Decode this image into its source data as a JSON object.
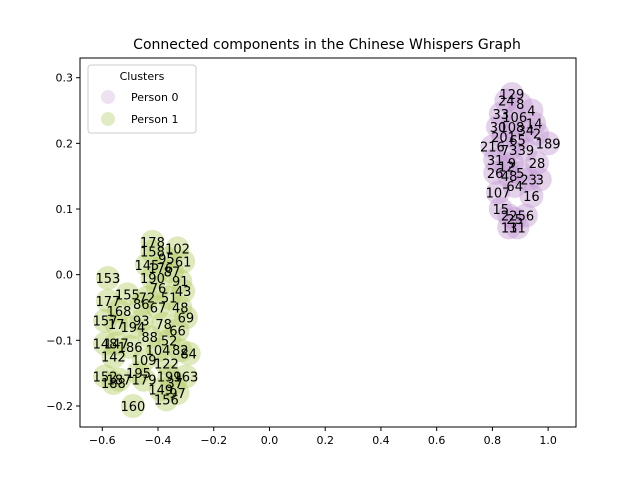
{
  "chart_data": {
    "type": "scatter",
    "title": "Connected components in the Chinese Whispers Graph",
    "xlim": [
      -0.68,
      1.1
    ],
    "ylim": [
      -0.232,
      0.33
    ],
    "x_ticks": [
      -0.6,
      -0.4,
      -0.2,
      0.0,
      0.2,
      0.4,
      0.6,
      0.8,
      1.0
    ],
    "x_tick_labels": [
      "−0.6",
      "−0.4",
      "−0.2",
      "0.0",
      "0.2",
      "0.4",
      "0.6",
      "0.8",
      "1.0"
    ],
    "y_ticks": [
      -0.2,
      -0.1,
      0.0,
      0.1,
      0.2,
      0.3
    ],
    "y_tick_labels": [
      "−0.2",
      "−0.1",
      "0.0",
      "0.1",
      "0.2",
      "0.3"
    ],
    "grid": false,
    "legend": {
      "title": "Clusters",
      "placement": "top-left"
    },
    "series": [
      {
        "name": "Person 0",
        "color": "#c39bd3",
        "points": [
          {
            "x": 0.87,
            "y": 0.275,
            "label": "129"
          },
          {
            "x": 0.85,
            "y": 0.265,
            "label": "24"
          },
          {
            "x": 0.9,
            "y": 0.26,
            "label": "8"
          },
          {
            "x": 0.94,
            "y": 0.25,
            "label": "4"
          },
          {
            "x": 0.83,
            "y": 0.245,
            "label": "33"
          },
          {
            "x": 0.88,
            "y": 0.24,
            "label": "106"
          },
          {
            "x": 0.95,
            "y": 0.23,
            "label": "14"
          },
          {
            "x": 0.82,
            "y": 0.225,
            "label": "30"
          },
          {
            "x": 0.87,
            "y": 0.225,
            "label": "108"
          },
          {
            "x": 0.92,
            "y": 0.22,
            "label": "34"
          },
          {
            "x": 0.96,
            "y": 0.215,
            "label": "2"
          },
          {
            "x": 0.84,
            "y": 0.21,
            "label": "201"
          },
          {
            "x": 0.89,
            "y": 0.205,
            "label": "65"
          },
          {
            "x": 1.0,
            "y": 0.2,
            "label": "189"
          },
          {
            "x": 0.8,
            "y": 0.195,
            "label": "216"
          },
          {
            "x": 0.86,
            "y": 0.19,
            "label": "73"
          },
          {
            "x": 0.92,
            "y": 0.19,
            "label": "39"
          },
          {
            "x": 0.81,
            "y": 0.175,
            "label": "31"
          },
          {
            "x": 0.87,
            "y": 0.17,
            "label": "9"
          },
          {
            "x": 0.96,
            "y": 0.17,
            "label": "28"
          },
          {
            "x": 0.85,
            "y": 0.165,
            "label": "12"
          },
          {
            "x": 0.81,
            "y": 0.155,
            "label": "26"
          },
          {
            "x": 0.9,
            "y": 0.155,
            "label": "5"
          },
          {
            "x": 0.86,
            "y": 0.15,
            "label": "48"
          },
          {
            "x": 0.93,
            "y": 0.145,
            "label": "23"
          },
          {
            "x": 0.97,
            "y": 0.145,
            "label": "3"
          },
          {
            "x": 0.88,
            "y": 0.135,
            "label": "64"
          },
          {
            "x": 0.82,
            "y": 0.125,
            "label": "107"
          },
          {
            "x": 0.94,
            "y": 0.12,
            "label": "16"
          },
          {
            "x": 0.83,
            "y": 0.1,
            "label": "15"
          },
          {
            "x": 0.86,
            "y": 0.09,
            "label": "22"
          },
          {
            "x": 0.92,
            "y": 0.09,
            "label": "56"
          },
          {
            "x": 0.88,
            "y": 0.085,
            "label": "25"
          },
          {
            "x": 0.86,
            "y": 0.072,
            "label": "13"
          },
          {
            "x": 0.89,
            "y": 0.072,
            "label": "11"
          }
        ]
      },
      {
        "name": "Person 1",
        "color": "#b5cf6b",
        "points": [
          {
            "x": -0.42,
            "y": 0.05,
            "label": "178"
          },
          {
            "x": -0.33,
            "y": 0.04,
            "label": "102"
          },
          {
            "x": -0.42,
            "y": 0.035,
            "label": "158"
          },
          {
            "x": -0.37,
            "y": 0.025,
            "label": "95"
          },
          {
            "x": -0.31,
            "y": 0.02,
            "label": "61"
          },
          {
            "x": -0.44,
            "y": 0.015,
            "label": "145"
          },
          {
            "x": -0.39,
            "y": 0.01,
            "label": "176"
          },
          {
            "x": -0.35,
            "y": 0.005,
            "label": "87"
          },
          {
            "x": -0.58,
            "y": -0.005,
            "label": "153"
          },
          {
            "x": -0.42,
            "y": -0.005,
            "label": "190"
          },
          {
            "x": -0.32,
            "y": -0.01,
            "label": "91"
          },
          {
            "x": -0.4,
            "y": -0.02,
            "label": "76"
          },
          {
            "x": -0.31,
            "y": -0.025,
            "label": "43"
          },
          {
            "x": -0.51,
            "y": -0.03,
            "label": "155"
          },
          {
            "x": -0.44,
            "y": -0.035,
            "label": "72"
          },
          {
            "x": -0.36,
            "y": -0.035,
            "label": "51"
          },
          {
            "x": -0.58,
            "y": -0.04,
            "label": "177"
          },
          {
            "x": -0.46,
            "y": -0.045,
            "label": "86"
          },
          {
            "x": -0.4,
            "y": -0.05,
            "label": "67"
          },
          {
            "x": -0.32,
            "y": -0.05,
            "label": "48"
          },
          {
            "x": -0.54,
            "y": -0.055,
            "label": "168"
          },
          {
            "x": -0.3,
            "y": -0.065,
            "label": "69"
          },
          {
            "x": -0.59,
            "y": -0.07,
            "label": "157"
          },
          {
            "x": -0.46,
            "y": -0.07,
            "label": "93"
          },
          {
            "x": -0.38,
            "y": -0.075,
            "label": "78"
          },
          {
            "x": -0.55,
            "y": -0.075,
            "label": "17"
          },
          {
            "x": -0.49,
            "y": -0.08,
            "label": "194"
          },
          {
            "x": -0.33,
            "y": -0.085,
            "label": "66"
          },
          {
            "x": -0.43,
            "y": -0.095,
            "label": "88"
          },
          {
            "x": -0.36,
            "y": -0.1,
            "label": "52"
          },
          {
            "x": -0.59,
            "y": -0.105,
            "label": "148"
          },
          {
            "x": -0.55,
            "y": -0.105,
            "label": "147"
          },
          {
            "x": -0.5,
            "y": -0.11,
            "label": "186"
          },
          {
            "x": -0.4,
            "y": -0.115,
            "label": "104"
          },
          {
            "x": -0.32,
            "y": -0.115,
            "label": "82"
          },
          {
            "x": -0.29,
            "y": -0.12,
            "label": "84"
          },
          {
            "x": -0.56,
            "y": -0.125,
            "label": "142"
          },
          {
            "x": -0.45,
            "y": -0.13,
            "label": "109"
          },
          {
            "x": -0.37,
            "y": -0.135,
            "label": "122"
          },
          {
            "x": -0.47,
            "y": -0.15,
            "label": "195"
          },
          {
            "x": -0.36,
            "y": -0.155,
            "label": "199"
          },
          {
            "x": -0.3,
            "y": -0.155,
            "label": "163"
          },
          {
            "x": -0.59,
            "y": -0.155,
            "label": "152"
          },
          {
            "x": -0.54,
            "y": -0.16,
            "label": "187"
          },
          {
            "x": -0.45,
            "y": -0.16,
            "label": "179"
          },
          {
            "x": -0.34,
            "y": -0.165,
            "label": "37"
          },
          {
            "x": -0.56,
            "y": -0.165,
            "label": "188"
          },
          {
            "x": -0.39,
            "y": -0.175,
            "label": "149"
          },
          {
            "x": -0.33,
            "y": -0.18,
            "label": "97"
          },
          {
            "x": -0.37,
            "y": -0.19,
            "label": "156"
          },
          {
            "x": -0.49,
            "y": -0.2,
            "label": "160"
          }
        ]
      }
    ]
  }
}
